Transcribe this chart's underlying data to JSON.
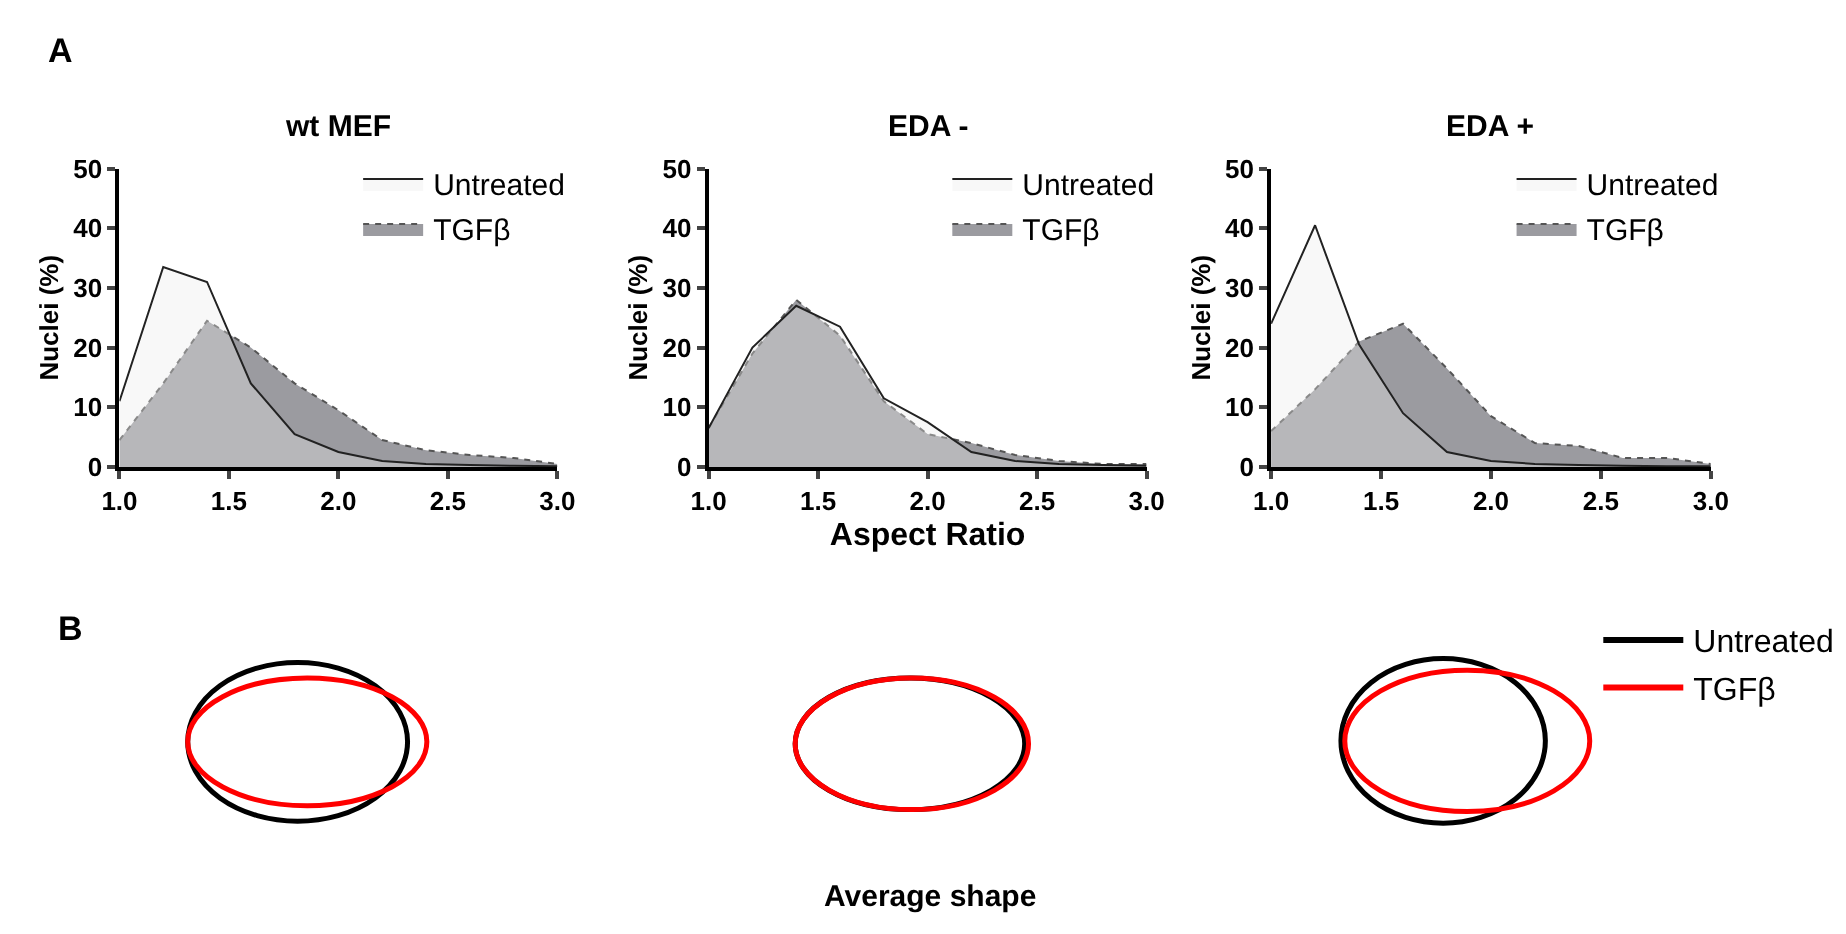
{
  "chart_data": [
    {
      "type": "area",
      "title": "wt MEF",
      "ylabel": "Nuclei (%)",
      "annotations": [
        "A"
      ],
      "x": [
        1.0,
        1.2,
        1.4,
        1.6,
        1.8,
        2.0,
        2.2,
        2.4,
        2.6,
        2.8,
        3.0
      ],
      "xlim": [
        1.0,
        3.0
      ],
      "xticks": [
        {
          "value": 1.0,
          "label": "1.0"
        },
        {
          "value": 1.5,
          "label": "1.5"
        },
        {
          "value": 2.0,
          "label": "2.0"
        },
        {
          "value": 2.5,
          "label": "2.5"
        },
        {
          "value": 3.0,
          "label": "3.0"
        }
      ],
      "ylim": [
        0,
        50
      ],
      "yticks": [
        0,
        10,
        20,
        30,
        40,
        50
      ],
      "legend": "top right",
      "series": [
        {
          "name": "Untreated",
          "color": "#ececec",
          "line_style": "solid",
          "values": [
            11,
            33.5,
            31,
            14,
            5.5,
            2.5,
            1,
            0.5,
            0.3,
            0.2,
            0.1
          ]
        },
        {
          "name": "TGFβ",
          "color": "#9b9ba0",
          "line_style": "dotted",
          "values": [
            4.5,
            14,
            24.5,
            20,
            14,
            9.5,
            4.5,
            2.8,
            2,
            1.5,
            0.5
          ]
        }
      ]
    },
    {
      "type": "area",
      "title": "EDA -",
      "ylabel": "Nuclei (%)",
      "xlabel": "Aspect Ratio",
      "x": [
        1.0,
        1.2,
        1.4,
        1.6,
        1.8,
        2.0,
        2.2,
        2.4,
        2.6,
        2.8,
        3.0
      ],
      "xlim": [
        1.0,
        3.0
      ],
      "xticks": [
        {
          "value": 1.0,
          "label": "1.0"
        },
        {
          "value": 1.5,
          "label": "1.5"
        },
        {
          "value": 2.0,
          "label": "2.0"
        },
        {
          "value": 2.5,
          "label": "2.5"
        },
        {
          "value": 3.0,
          "label": "3.0"
        }
      ],
      "ylim": [
        0,
        50
      ],
      "yticks": [
        0,
        10,
        20,
        30,
        40,
        50
      ],
      "legend": "top right",
      "series": [
        {
          "name": "Untreated",
          "color": "#ececec",
          "line_style": "solid",
          "values": [
            6.5,
            20,
            27,
            23.5,
            11.5,
            7.5,
            2.5,
            1,
            0.5,
            0.3,
            0.2
          ]
        },
        {
          "name": "TGFβ",
          "color": "#9b9ba0",
          "line_style": "dotted",
          "values": [
            6.5,
            19,
            28,
            22,
            11,
            5.5,
            4,
            2,
            1,
            0.5,
            0.5
          ]
        }
      ]
    },
    {
      "type": "area",
      "title": "EDA +",
      "ylabel": "Nuclei (%)",
      "x": [
        1.0,
        1.2,
        1.4,
        1.6,
        1.8,
        2.0,
        2.2,
        2.4,
        2.6,
        2.8,
        3.0
      ],
      "xlim": [
        1.0,
        3.0
      ],
      "xticks": [
        {
          "value": 1.0,
          "label": "1.0"
        },
        {
          "value": 1.5,
          "label": "1.5"
        },
        {
          "value": 2.0,
          "label": "2.0"
        },
        {
          "value": 2.5,
          "label": "2.5"
        },
        {
          "value": 3.0,
          "label": "3.0"
        }
      ],
      "ylim": [
        0,
        50
      ],
      "yticks": [
        0,
        10,
        20,
        30,
        40,
        50
      ],
      "legend": "top right",
      "series": [
        {
          "name": "Untreated",
          "color": "#ececec",
          "line_style": "solid",
          "values": [
            24,
            40.5,
            20.5,
            9,
            2.5,
            1,
            0.5,
            0.3,
            0.2,
            0.1,
            0.1
          ]
        },
        {
          "name": "TGFβ",
          "color": "#9b9ba0",
          "line_style": "dotted",
          "values": [
            6,
            13,
            21,
            24,
            16.5,
            8.5,
            4,
            3.5,
            1.5,
            1.5,
            0.5
          ]
        }
      ]
    },
    {
      "type": "other",
      "annotations": [
        "B",
        "Average shape"
      ],
      "legend": "top right",
      "series": [
        {
          "name": "Untreated",
          "color": "#000000"
        },
        {
          "name": "TGFβ",
          "color": "#ff0000"
        }
      ]
    }
  ]
}
